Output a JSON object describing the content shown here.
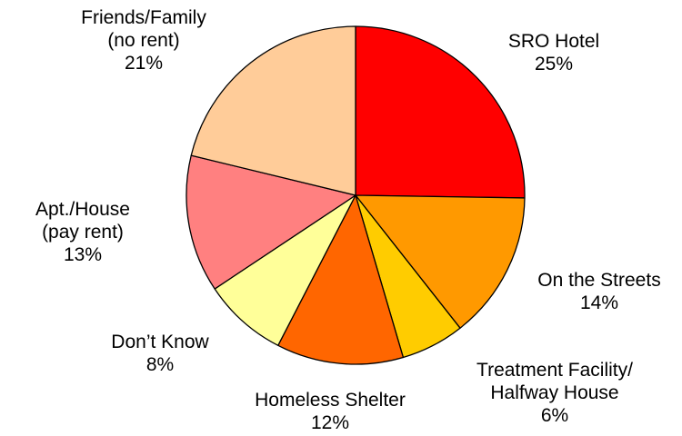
{
  "chart_data": {
    "type": "pie",
    "title": "",
    "start_angle_deg": 0,
    "direction": "clockwise",
    "slices": [
      {
        "label_lines": [
          "SRO Hotel"
        ],
        "value": 25,
        "value_label": "25%",
        "color": "#FF0000"
      },
      {
        "label_lines": [
          "On the Streets"
        ],
        "value": 14,
        "value_label": "14%",
        "color": "#FF9900"
      },
      {
        "label_lines": [
          "Treatment Facility/",
          "Halfway House"
        ],
        "value": 6,
        "value_label": "6%",
        "color": "#FFCC00"
      },
      {
        "label_lines": [
          "Homeless Shelter"
        ],
        "value": 12,
        "value_label": "12%",
        "color": "#FF6600"
      },
      {
        "label_lines": [
          "Don’t Know"
        ],
        "value": 8,
        "value_label": "8%",
        "color": "#FFFF99"
      },
      {
        "label_lines": [
          "Apt./House",
          "(pay rent)"
        ],
        "value": 13,
        "value_label": "13%",
        "color": "#FF8080"
      },
      {
        "label_lines": [
          "Friends/Family",
          "(no rent)"
        ],
        "value": 21,
        "value_label": "21%",
        "color": "#FFCC99"
      }
    ]
  }
}
